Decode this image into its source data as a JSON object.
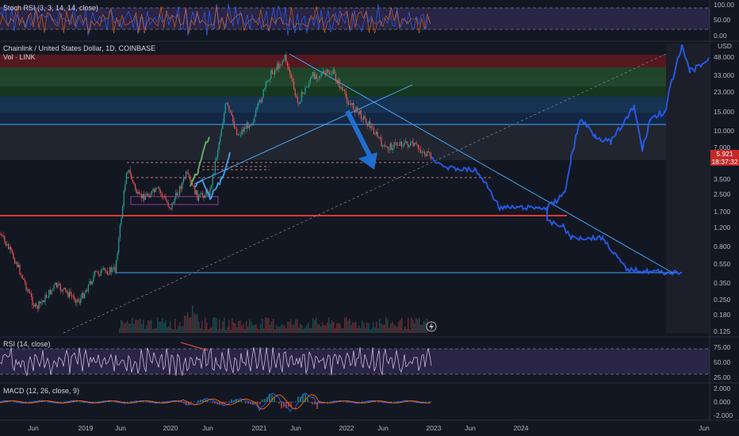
{
  "stoch_panel": {
    "title": "Stoch RSI (3, 3, 14, 14, close)",
    "ticks": [
      "100.00",
      "50.00",
      "0.00"
    ]
  },
  "main_panel": {
    "title": "Chainlink / United States Dollar, 1D, COINBASE",
    "volume_label": "Vol · LINK",
    "currency": "USD",
    "price_ticks": [
      "48.000",
      "33.000",
      "23.000",
      "15.000",
      "10.000",
      "7.000",
      "3.500",
      "2.500",
      "1.700",
      "1.200",
      "0.800",
      "0.550",
      "0.350",
      "0.250",
      "0.180",
      "0.125"
    ],
    "last_price": "5.921",
    "countdown": "18:37:32"
  },
  "rsi_panel": {
    "title": "RSI (14, close)",
    "ticks": [
      "75.00",
      "50.00",
      "25.00"
    ]
  },
  "macd_panel": {
    "title": "MACD (12, 26, close, 9)",
    "ticks": [
      "2.000",
      "0.000",
      "-2.000"
    ]
  },
  "time_axis": [
    "Jun",
    "2019",
    "Jun",
    "2020",
    "Jun",
    "2021",
    "Jun",
    "2022",
    "Jun",
    "2023",
    "Jun",
    "2024",
    "Jun"
  ],
  "colors": {
    "background": "#131722",
    "up_candle": "#26a69a",
    "down_candle": "#ef5350",
    "projection": "#2962ff",
    "rsi_line": "#c9b6e0",
    "rsi_band": "#7e57c2",
    "macd_line": "#2962ff",
    "signal_line": "#ff6d00"
  },
  "icons": {
    "lightning": "lightning-icon"
  }
}
